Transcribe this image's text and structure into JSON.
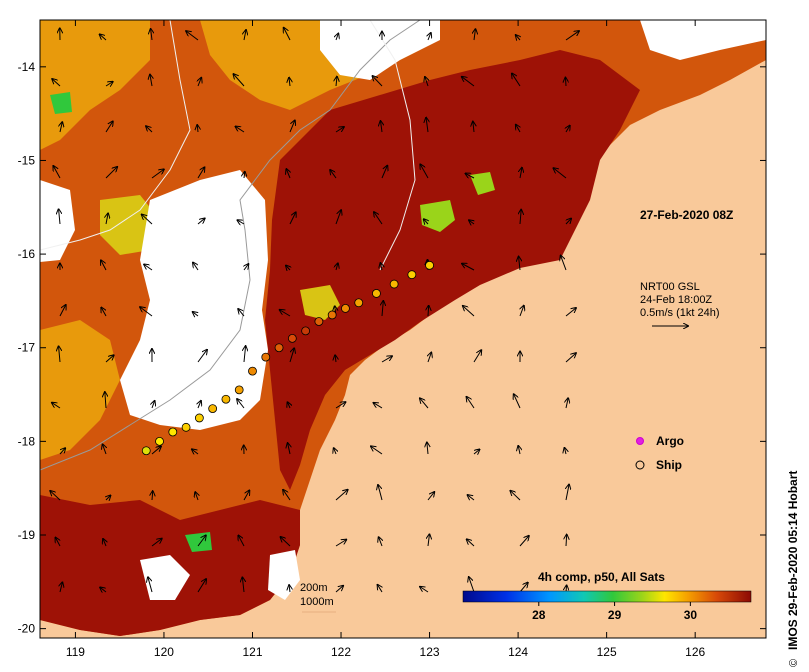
{
  "map": {
    "date_label": "27-Feb-2020 08Z",
    "current_key": {
      "line1": "NRT00 GSL",
      "line2": "24-Feb 18:00Z",
      "line3": "0.5m/s (1kt 24h)"
    },
    "legend": {
      "argo": "Argo",
      "ship": "Ship"
    },
    "depth_key": {
      "a": "200m",
      "b": "1000m"
    },
    "colorbar": {
      "title": "4h comp, p50, All Sats",
      "ticks": [
        28,
        29,
        30
      ],
      "min": 27.0,
      "max": 30.8
    },
    "credit": "IMOS 29-Feb-2020 05:14 Hobart",
    "axes": {
      "lon_range": [
        118.6,
        126.8
      ],
      "lat_range": [
        -20.1,
        -13.5
      ],
      "lon_ticks": [
        119,
        120,
        121,
        122,
        123,
        124,
        125,
        126
      ],
      "lat_ticks": [
        -14,
        -15,
        -16,
        -17,
        -18,
        -19,
        -20
      ]
    },
    "ship_track": [
      {
        "lon": 119.8,
        "lat": -18.1,
        "t": 29.6
      },
      {
        "lon": 119.95,
        "lat": -18.0,
        "t": 29.7
      },
      {
        "lon": 120.1,
        "lat": -17.9,
        "t": 29.7
      },
      {
        "lon": 120.25,
        "lat": -17.85,
        "t": 29.8
      },
      {
        "lon": 120.4,
        "lat": -17.75,
        "t": 29.8
      },
      {
        "lon": 120.55,
        "lat": -17.65,
        "t": 29.9
      },
      {
        "lon": 120.7,
        "lat": -17.55,
        "t": 29.9
      },
      {
        "lon": 120.85,
        "lat": -17.45,
        "t": 30.0
      },
      {
        "lon": 121.0,
        "lat": -17.25,
        "t": 30.1
      },
      {
        "lon": 121.15,
        "lat": -17.1,
        "t": 30.2
      },
      {
        "lon": 121.3,
        "lat": -17.0,
        "t": 30.3
      },
      {
        "lon": 121.45,
        "lat": -16.9,
        "t": 30.4
      },
      {
        "lon": 121.6,
        "lat": -16.82,
        "t": 30.5
      },
      {
        "lon": 121.75,
        "lat": -16.72,
        "t": 30.3
      },
      {
        "lon": 121.9,
        "lat": -16.65,
        "t": 30.2
      },
      {
        "lon": 122.05,
        "lat": -16.58,
        "t": 30.1
      },
      {
        "lon": 122.2,
        "lat": -16.52,
        "t": 30.0
      },
      {
        "lon": 122.4,
        "lat": -16.42,
        "t": 29.9
      },
      {
        "lon": 122.6,
        "lat": -16.32,
        "t": 29.9
      },
      {
        "lon": 122.8,
        "lat": -16.22,
        "t": 29.8
      },
      {
        "lon": 123.0,
        "lat": -16.12,
        "t": 29.8
      }
    ],
    "colors": {
      "land": "#f9c99a",
      "no_data": "#ffffff",
      "hot": "#9e1206",
      "warm": "#d2560c",
      "mid": "#e89a0c",
      "cool": "#d9c414"
    }
  }
}
